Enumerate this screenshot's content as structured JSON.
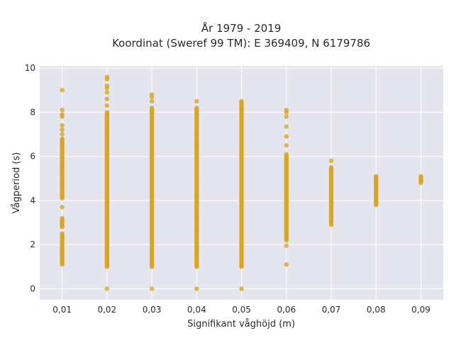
{
  "chart_data": {
    "type": "scatter",
    "title": "År 1979 - 2019",
    "subtitle": "Koordinat (Sweref 99 TM): E 369409, N 6179786",
    "xlabel": "Signifikant våghöjd (m)",
    "ylabel": "Vågperiod (s)",
    "xlim": [
      0.005,
      0.095
    ],
    "ylim": [
      -0.5,
      10.1
    ],
    "x_ticks": [
      0.01,
      0.02,
      0.03,
      0.04,
      0.05,
      0.06,
      0.07,
      0.08,
      0.09
    ],
    "x_tick_labels": [
      "0,01",
      "0,02",
      "0,03",
      "0,04",
      "0,05",
      "0,06",
      "0,07",
      "0,08",
      "0,09"
    ],
    "y_ticks": [
      0,
      2,
      4,
      6,
      8,
      10
    ],
    "y_tick_labels": [
      "0",
      "2",
      "4",
      "6",
      "8",
      "10"
    ],
    "grid": true,
    "marker_color": "#DAA520",
    "background_color": "#E5E5EF",
    "series": [
      {
        "x": 0.01,
        "ranges": [
          [
            1.1,
            2.5
          ],
          [
            2.8,
            3.2
          ],
          [
            4.1,
            6.8
          ]
        ],
        "points": [
          3.7,
          7.0,
          7.2,
          7.4,
          7.8,
          7.9,
          8.1,
          9.0
        ]
      },
      {
        "x": 0.02,
        "ranges": [
          [
            1.0,
            8.0
          ]
        ],
        "points": [
          0.0,
          8.3,
          8.6,
          8.9,
          9.1,
          9.2,
          9.5,
          9.6
        ]
      },
      {
        "x": 0.03,
        "ranges": [
          [
            1.0,
            8.2
          ]
        ],
        "points": [
          0.0,
          8.5,
          8.7,
          8.8
        ]
      },
      {
        "x": 0.04,
        "ranges": [
          [
            1.0,
            8.2
          ]
        ],
        "points": [
          0.0,
          8.5
        ]
      },
      {
        "x": 0.05,
        "ranges": [
          [
            1.0,
            8.5
          ]
        ],
        "points": [
          0.0
        ]
      },
      {
        "x": 0.06,
        "ranges": [
          [
            2.2,
            6.1
          ]
        ],
        "points": [
          1.1,
          1.95,
          6.5,
          6.9,
          7.35,
          7.8,
          8.0,
          8.1
        ]
      },
      {
        "x": 0.07,
        "ranges": [
          [
            2.9,
            5.5
          ]
        ],
        "points": [
          5.8
        ]
      },
      {
        "x": 0.08,
        "ranges": [
          [
            3.8,
            5.1
          ]
        ],
        "points": []
      },
      {
        "x": 0.09,
        "ranges": [
          [
            4.8,
            5.1
          ]
        ],
        "points": []
      }
    ]
  }
}
